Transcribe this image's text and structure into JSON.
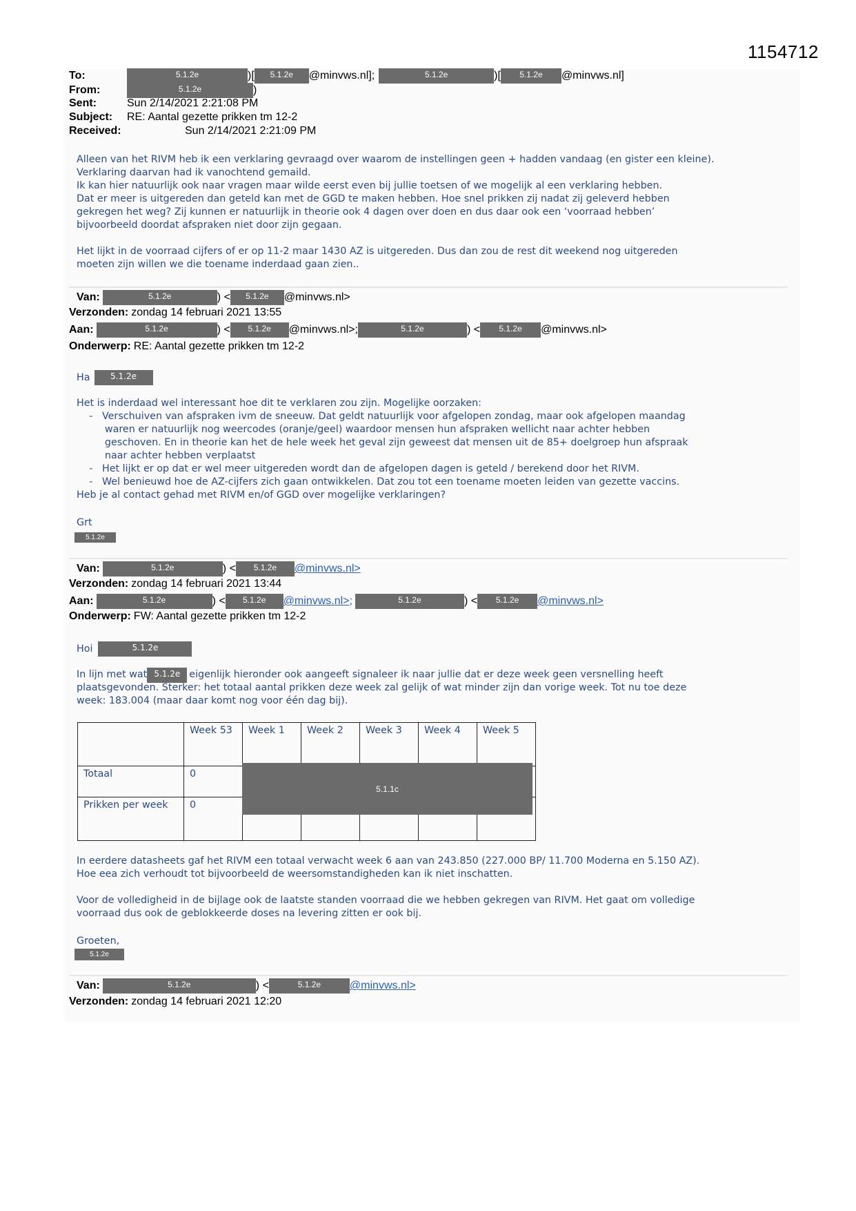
{
  "document_number": "1154712",
  "redaction_code": "5.1.2e",
  "table_redaction_code": "5.1.1c",
  "top_header": {
    "to_label": "To:",
    "from_label": "From:",
    "sent_label": "Sent:",
    "subject_label": "Subject:",
    "received_label": "Received:",
    "sep1": ")[",
    "domain1": "@minvws.nl];",
    "domain2": "@minvws.nl]",
    "from_close": ")",
    "sent": "Sun 2/14/2021 2:21:08 PM",
    "subject": "RE: Aantal gezette prikken tm 12-2",
    "received": "Sun 2/14/2021 2:21:09 PM"
  },
  "msg1": {
    "lines": [
      "Alleen van het RIVM heb ik een verklaring gevraagd over waarom de instellingen geen + hadden vandaag (en gister een kleine).",
      "Verklaring daarvan had ik vanochtend gemaild.",
      "Ik kan hier natuurlijk ook naar vragen maar wilde eerst even bij jullie toetsen of we mogelijk al een verklaring hebben.",
      "Dat er meer is uitgereden dan geteld kan met de GGD te maken hebben. Hoe snel prikken zij nadat zij geleverd hebben",
      "gekregen het weg? Zij kunnen er natuurlijk in theorie ook 4 dagen over doen en dus daar ook een ‘voorraad hebben’",
      "bijvoorbeeld doordat afspraken niet door zijn gegaan.",
      "",
      "Het lijkt in de voorraad cijfers of er op 11-2 maar 1430 AZ is uitgereden. Dus dan zou de rest dit weekend nog uitgereden",
      "moeten zijn willen we die toename inderdaad gaan zien.."
    ]
  },
  "msg2": {
    "van_label": "Van:",
    "verzonden_label": "Verzonden:",
    "aan_label": "Aan:",
    "onderwerp_label": "Onderwerp:",
    "bracket": ") <",
    "domain": "@minvws.nl>",
    "domain_sep": "@minvws.nl>;",
    "verzonden": "zondag 14 februari 2021 13:55",
    "onderwerp": "RE: Aantal gezette prikken tm 12-2",
    "greeting": "Ha",
    "lines": [
      "Het is inderdaad wel interessant hoe dit te verklaren zou zijn. Mogelijke oorzaken:",
      "    -   Verschuiven van afspraken ivm de sneeuw. Dat geldt natuurlijk voor afgelopen zondag, maar ook afgelopen maandag",
      "         waren er natuurlijk nog weercodes (oranje/geel) waardoor mensen hun afspraken wellicht naar achter hebben",
      "         geschoven. En in theorie kan het de hele week het geval zijn geweest dat mensen uit de 85+ doelgroep hun afspraak",
      "         naar achter hebben verplaatst",
      "    -   Het lijkt er op dat er wel meer uitgereden wordt dan de afgelopen dagen is geteld / berekend door het RIVM.",
      "    -   Wel benieuwd hoe de AZ-cijfers zich gaan ontwikkelen. Dat zou tot een toename moeten leiden van gezette vaccins.",
      "Heb je al contact gehad met RIVM en/of GGD over mogelijke verklaringen?"
    ],
    "closing": "Grt"
  },
  "msg3": {
    "verzonden": "zondag 14 februari 2021 13:44",
    "onderwerp": "FW: Aantal gezette prikken tm 12-2",
    "greeting": "Hoi",
    "line1_pre": "In lijn met wat",
    "line1_post": "eigenlijk hieronder ook aangeeft signaleer ik naar jullie dat er deze week geen versnelling heeft",
    "lines": [
      "plaatsgevonden. Sterker: het totaal aantal prikken deze week zal gelijk of wat minder zijn dan vorige week. Tot nu toe deze",
      "week: 183.004 (maar daar komt nog voor één dag bij)."
    ],
    "table": {
      "headers": [
        "",
        "Week 53",
        "Week 1",
        "Week 2",
        "Week 3",
        "Week 4",
        "Week 5"
      ],
      "rows": [
        {
          "label": "Totaal",
          "week53": "0"
        },
        {
          "label": "Prikken per week",
          "week53": "0"
        }
      ]
    },
    "after_lines": [
      "In eerdere datasheets gaf het RIVM een totaal verwacht week 6 aan van 243.850 (227.000 BP/ 11.700 Moderna en 5.150 AZ).",
      "Hoe eea zich verhoudt tot bijvoorbeeld de weersomstandigheden kan ik niet inschatten.",
      "",
      "Voor de volledigheid in de bijlage ook de laatste standen voorraad die we hebben gekregen van RIVM. Het gaat om volledige",
      "voorraad dus ook de geblokkeerde doses na levering zitten er ook bij."
    ],
    "closing": "Groeten,"
  },
  "msg4": {
    "verzonden": "zondag 14 februari 2021 12:20"
  }
}
